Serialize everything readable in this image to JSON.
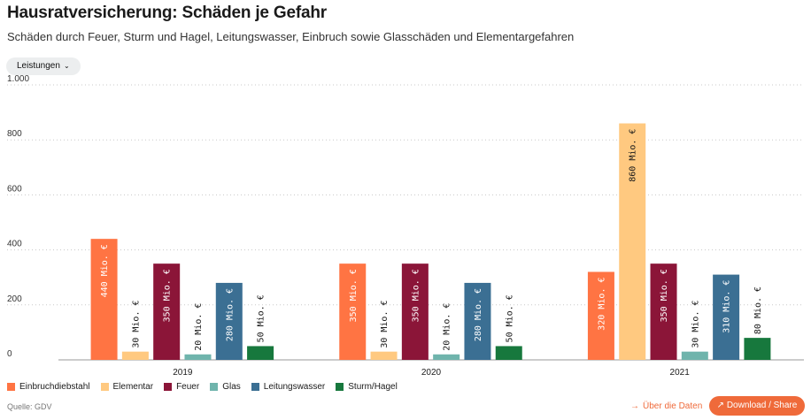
{
  "header": {
    "title": "Hausratversicherung: Schäden je Gefahr",
    "subtitle": "Schäden durch Feuer, Sturm und Hagel, Leitungswasser, Einbruch sowie Glasschäden und Elementargefahren"
  },
  "controls": {
    "dropdown_label": "Leistungen",
    "dropdown_icon": "chevron-down-icon"
  },
  "footer": {
    "source": "Quelle: GDV",
    "data_link": "Über die Daten",
    "data_link_icon": "arrow-right-icon",
    "share_button": "Download / Share",
    "share_icon": "arrow-up-right-icon"
  },
  "chart_data": {
    "type": "bar",
    "title": "Hausratversicherung: Schäden je Gefahr",
    "xlabel": "",
    "ylabel": "",
    "ylim": [
      0,
      1000
    ],
    "yticks": [
      0,
      200,
      400,
      600,
      800,
      1000
    ],
    "ytick_labels": [
      "0",
      "200",
      "400",
      "600",
      "800",
      "1.000"
    ],
    "grid": true,
    "legend_position": "bottom-left",
    "label_suffix": " Mio. €",
    "categories": [
      "2019",
      "2020",
      "2021"
    ],
    "series": [
      {
        "name": "Einbruchdiebstahl",
        "color": "#ff7443",
        "label_inside": true,
        "values": [
          440,
          350,
          320
        ]
      },
      {
        "name": "Elementar",
        "color": "#ffc980",
        "label_inside": false,
        "values": [
          30,
          30,
          860
        ]
      },
      {
        "name": "Feuer",
        "color": "#8b1538",
        "label_inside": true,
        "values": [
          350,
          350,
          350
        ]
      },
      {
        "name": "Glas",
        "color": "#6fb4ac",
        "label_inside": false,
        "values": [
          20,
          20,
          30
        ]
      },
      {
        "name": "Leitungswasser",
        "color": "#3b6f93",
        "label_inside": true,
        "values": [
          280,
          280,
          310
        ]
      },
      {
        "name": "Sturm/Hagel",
        "color": "#17783d",
        "label_inside": false,
        "values": [
          50,
          50,
          80
        ]
      }
    ]
  }
}
